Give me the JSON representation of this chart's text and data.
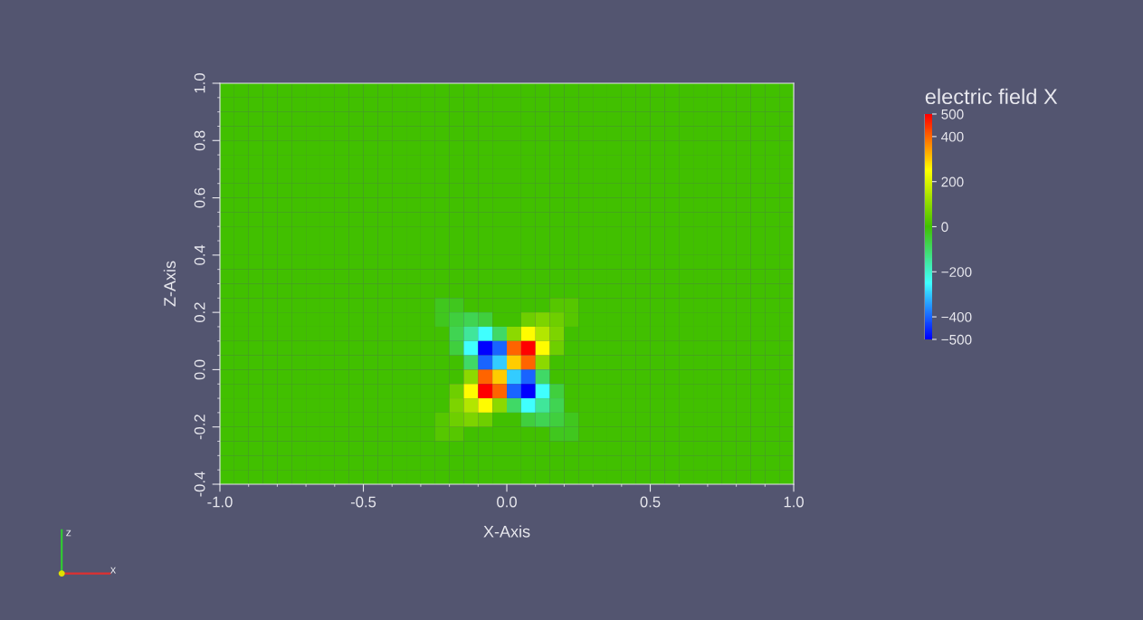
{
  "chart_data": {
    "type": "heatmap",
    "xlabel": "X-Axis",
    "ylabel": "Z-Axis",
    "clabel": "electric field X",
    "xlim": [
      -1.0,
      1.0
    ],
    "ylim": [
      -0.4,
      1.0
    ],
    "xticks": [
      {
        "value": -1.0,
        "label": "-1.0"
      },
      {
        "value": -0.5,
        "label": "-0.5"
      },
      {
        "value": 0,
        "label": "0.0"
      },
      {
        "value": 0.5,
        "label": "0.5"
      },
      {
        "value": 1.0,
        "label": "1.0"
      }
    ],
    "yticks": [
      {
        "value": -0.4,
        "label": "-0.4"
      },
      {
        "value": -0.2,
        "label": "-0.2"
      },
      {
        "value": 0,
        "label": "0.0"
      },
      {
        "value": 0.2,
        "label": "0.2"
      },
      {
        "value": 0.4,
        "label": "0.4"
      },
      {
        "value": 0.6,
        "label": "0.6"
      },
      {
        "value": 0.8,
        "label": "0.8"
      },
      {
        "value": 1.0,
        "label": "1.0"
      }
    ],
    "clim": [
      -500,
      500
    ],
    "cticks": [
      -500,
      -400,
      -200,
      0,
      200,
      400,
      500
    ],
    "annotations": [
      "z",
      "x"
    ],
    "cells": [
      [
        0,
        0,
        0,
        0,
        0,
        0,
        0,
        0,
        0,
        0,
        0,
        0,
        0,
        0,
        0,
        0,
        0,
        0,
        0,
        0,
        0,
        0,
        0,
        0,
        0,
        0,
        0,
        0,
        0,
        0,
        0,
        0,
        0,
        0,
        0,
        0,
        0,
        0,
        0,
        0
      ],
      [
        0,
        0,
        0,
        0,
        0,
        0,
        0,
        0,
        0,
        0,
        0,
        0,
        0,
        0,
        0,
        0,
        0,
        0,
        0,
        0,
        0,
        0,
        0,
        0,
        0,
        0,
        0,
        0,
        0,
        0,
        0,
        0,
        0,
        0,
        0,
        0,
        0,
        0,
        0,
        0
      ],
      [
        0,
        0,
        0,
        0,
        0,
        0,
        0,
        0,
        0,
        0,
        0,
        0,
        0,
        0,
        0,
        0,
        0,
        0,
        0,
        0,
        0,
        0,
        0,
        0,
        0,
        0,
        0,
        0,
        0,
        0,
        0,
        0,
        0,
        0,
        0,
        0,
        0,
        0,
        0,
        0
      ],
      [
        0,
        0,
        0,
        0,
        0,
        0,
        0,
        0,
        0,
        0,
        0,
        0,
        0,
        0,
        0,
        0,
        0,
        0,
        0,
        0,
        0,
        0,
        0,
        0,
        0,
        0,
        0,
        0,
        0,
        0,
        0,
        0,
        0,
        0,
        0,
        0,
        0,
        0,
        0,
        0
      ],
      [
        0,
        0,
        0,
        0,
        0,
        0,
        0,
        0,
        0,
        0,
        0,
        0,
        0,
        0,
        0,
        0,
        0,
        0,
        0,
        0,
        0,
        0,
        0,
        0,
        0,
        0,
        0,
        0,
        0,
        0,
        0,
        0,
        0,
        0,
        0,
        0,
        0,
        0,
        0,
        0
      ],
      [
        0,
        0,
        0,
        0,
        0,
        0,
        0,
        0,
        0,
        0,
        0,
        0,
        0,
        0,
        0,
        0,
        0,
        0,
        0,
        0,
        0,
        0,
        0,
        0,
        0,
        0,
        0,
        0,
        0,
        0,
        0,
        0,
        0,
        0,
        0,
        0,
        0,
        0,
        0,
        0
      ],
      [
        0,
        0,
        0,
        0,
        0,
        0,
        0,
        0,
        0,
        0,
        0,
        0,
        0,
        0,
        0,
        0,
        0,
        0,
        0,
        0,
        0,
        0,
        0,
        0,
        0,
        0,
        0,
        0,
        0,
        0,
        0,
        0,
        0,
        0,
        0,
        0,
        0,
        0,
        0,
        0
      ],
      [
        0,
        0,
        0,
        0,
        0,
        0,
        0,
        0,
        0,
        0,
        0,
        0,
        0,
        0,
        0,
        0,
        0,
        0,
        0,
        0,
        0,
        0,
        0,
        0,
        0,
        0,
        0,
        0,
        0,
        0,
        0,
        0,
        0,
        0,
        0,
        0,
        0,
        0,
        0,
        0
      ],
      [
        0,
        0,
        0,
        0,
        0,
        0,
        0,
        0,
        0,
        0,
        0,
        0,
        0,
        0,
        0,
        0,
        0,
        0,
        0,
        0,
        0,
        0,
        0,
        0,
        0,
        0,
        0,
        0,
        0,
        0,
        0,
        0,
        0,
        0,
        0,
        0,
        0,
        0,
        0,
        0
      ],
      [
        0,
        0,
        0,
        0,
        0,
        0,
        0,
        0,
        0,
        0,
        0,
        0,
        0,
        0,
        0,
        0,
        0,
        0,
        0,
        0,
        0,
        0,
        0,
        0,
        0,
        0,
        0,
        0,
        0,
        0,
        0,
        0,
        0,
        0,
        0,
        0,
        0,
        0,
        0,
        0
      ],
      [
        0,
        0,
        0,
        0,
        0,
        0,
        0,
        0,
        0,
        0,
        0,
        0,
        0,
        0,
        0,
        0,
        0,
        0,
        0,
        0,
        0,
        0,
        0,
        0,
        0,
        0,
        0,
        0,
        0,
        0,
        0,
        0,
        0,
        0,
        0,
        0,
        0,
        0,
        0,
        0
      ],
      [
        0,
        0,
        0,
        0,
        0,
        0,
        0,
        0,
        0,
        0,
        0,
        0,
        0,
        0,
        0,
        0,
        0,
        0,
        0,
        0,
        0,
        0,
        0,
        0,
        0,
        0,
        0,
        0,
        0,
        0,
        0,
        0,
        0,
        0,
        0,
        0,
        0,
        0,
        0,
        0
      ],
      [
        0,
        0,
        0,
        0,
        0,
        0,
        0,
        0,
        0,
        0,
        0,
        0,
        0,
        0,
        0,
        0,
        0,
        0,
        0,
        0,
        0,
        0,
        0,
        0,
        0,
        0,
        0,
        0,
        0,
        0,
        0,
        0,
        0,
        0,
        0,
        0,
        0,
        0,
        0,
        0
      ],
      [
        0,
        0,
        0,
        0,
        0,
        0,
        0,
        0,
        0,
        0,
        0,
        0,
        0,
        0,
        0,
        0,
        0,
        0,
        0,
        0,
        0,
        0,
        0,
        0,
        0,
        0,
        0,
        0,
        0,
        0,
        0,
        0,
        0,
        0,
        0,
        0,
        0,
        0,
        0,
        0
      ],
      [
        0,
        0,
        0,
        0,
        0,
        0,
        0,
        0,
        0,
        0,
        0,
        0,
        0,
        0,
        0,
        0,
        0,
        0,
        0,
        0,
        0,
        0,
        0,
        0,
        0,
        0,
        0,
        0,
        0,
        0,
        0,
        0,
        0,
        0,
        0,
        0,
        0,
        0,
        0,
        0
      ],
      [
        0,
        0,
        0,
        0,
        0,
        0,
        0,
        0,
        0,
        0,
        0,
        0,
        0,
        0,
        0,
        -30,
        -30,
        0,
        0,
        0,
        0,
        0,
        0,
        30,
        30,
        0,
        0,
        0,
        0,
        0,
        0,
        0,
        0,
        0,
        0,
        0,
        0,
        0,
        0,
        0
      ],
      [
        0,
        0,
        0,
        0,
        0,
        0,
        0,
        0,
        0,
        0,
        0,
        0,
        0,
        0,
        0,
        -30,
        -60,
        -80,
        -60,
        0,
        0,
        60,
        80,
        60,
        30,
        0,
        0,
        0,
        0,
        0,
        0,
        0,
        0,
        0,
        0,
        0,
        0,
        0,
        0,
        0
      ],
      [
        0,
        0,
        0,
        0,
        0,
        0,
        0,
        0,
        0,
        0,
        0,
        0,
        0,
        0,
        0,
        0,
        -80,
        -150,
        -250,
        -100,
        100,
        250,
        150,
        80,
        0,
        0,
        0,
        0,
        0,
        0,
        0,
        0,
        0,
        0,
        0,
        0,
        0,
        0,
        0,
        0
      ],
      [
        0,
        0,
        0,
        0,
        0,
        0,
        0,
        0,
        0,
        0,
        0,
        0,
        0,
        0,
        0,
        0,
        -60,
        -250,
        -500,
        -400,
        400,
        500,
        250,
        60,
        0,
        0,
        0,
        0,
        0,
        0,
        0,
        0,
        0,
        0,
        0,
        0,
        0,
        0,
        0,
        0
      ],
      [
        0,
        0,
        0,
        0,
        0,
        0,
        0,
        0,
        0,
        0,
        0,
        0,
        0,
        0,
        0,
        0,
        0,
        -100,
        -400,
        -300,
        300,
        400,
        100,
        0,
        0,
        0,
        0,
        0,
        0,
        0,
        0,
        0,
        0,
        0,
        0,
        0,
        0,
        0,
        0,
        0
      ],
      [
        0,
        0,
        0,
        0,
        0,
        0,
        0,
        0,
        0,
        0,
        0,
        0,
        0,
        0,
        0,
        0,
        0,
        100,
        400,
        300,
        -300,
        -400,
        -100,
        0,
        0,
        0,
        0,
        0,
        0,
        0,
        0,
        0,
        0,
        0,
        0,
        0,
        0,
        0,
        0,
        0
      ],
      [
        0,
        0,
        0,
        0,
        0,
        0,
        0,
        0,
        0,
        0,
        0,
        0,
        0,
        0,
        0,
        0,
        60,
        250,
        500,
        400,
        -400,
        -500,
        -250,
        -60,
        0,
        0,
        0,
        0,
        0,
        0,
        0,
        0,
        0,
        0,
        0,
        0,
        0,
        0,
        0,
        0
      ],
      [
        0,
        0,
        0,
        0,
        0,
        0,
        0,
        0,
        0,
        0,
        0,
        0,
        0,
        0,
        0,
        0,
        80,
        150,
        250,
        100,
        -100,
        -250,
        -150,
        -80,
        0,
        0,
        0,
        0,
        0,
        0,
        0,
        0,
        0,
        0,
        0,
        0,
        0,
        0,
        0,
        0
      ],
      [
        0,
        0,
        0,
        0,
        0,
        0,
        0,
        0,
        0,
        0,
        0,
        0,
        0,
        0,
        0,
        30,
        60,
        80,
        60,
        0,
        0,
        -60,
        -80,
        -60,
        -30,
        0,
        0,
        0,
        0,
        0,
        0,
        0,
        0,
        0,
        0,
        0,
        0,
        0,
        0,
        0
      ],
      [
        0,
        0,
        0,
        0,
        0,
        0,
        0,
        0,
        0,
        0,
        0,
        0,
        0,
        0,
        0,
        30,
        30,
        0,
        0,
        0,
        0,
        0,
        0,
        -30,
        -30,
        0,
        0,
        0,
        0,
        0,
        0,
        0,
        0,
        0,
        0,
        0,
        0,
        0,
        0,
        0
      ],
      [
        0,
        0,
        0,
        0,
        0,
        0,
        0,
        0,
        0,
        0,
        0,
        0,
        0,
        0,
        0,
        0,
        0,
        0,
        0,
        0,
        0,
        0,
        0,
        0,
        0,
        0,
        0,
        0,
        0,
        0,
        0,
        0,
        0,
        0,
        0,
        0,
        0,
        0,
        0,
        0
      ],
      [
        0,
        0,
        0,
        0,
        0,
        0,
        0,
        0,
        0,
        0,
        0,
        0,
        0,
        0,
        0,
        0,
        0,
        0,
        0,
        0,
        0,
        0,
        0,
        0,
        0,
        0,
        0,
        0,
        0,
        0,
        0,
        0,
        0,
        0,
        0,
        0,
        0,
        0,
        0,
        0
      ],
      [
        0,
        0,
        0,
        0,
        0,
        0,
        0,
        0,
        0,
        0,
        0,
        0,
        0,
        0,
        0,
        0,
        0,
        0,
        0,
        0,
        0,
        0,
        0,
        0,
        0,
        0,
        0,
        0,
        0,
        0,
        0,
        0,
        0,
        0,
        0,
        0,
        0,
        0,
        0,
        0
      ]
    ]
  }
}
